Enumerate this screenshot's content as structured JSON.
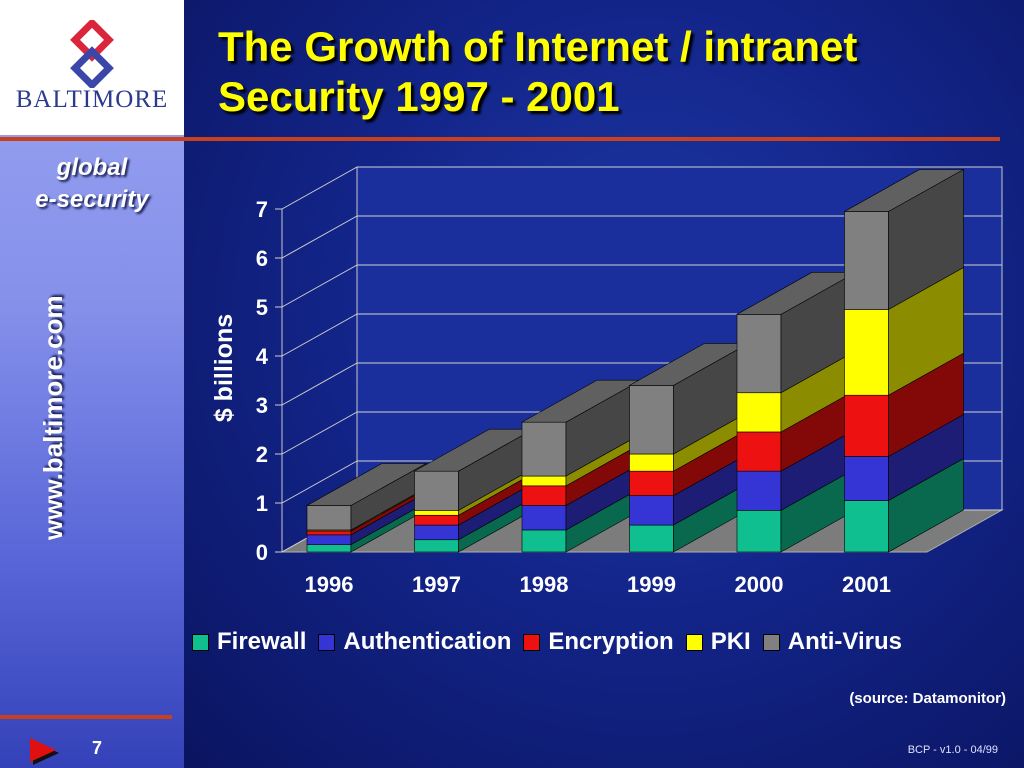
{
  "logo": {
    "name": "BALTIMORE",
    "icon": "baltimore-diamond-logo"
  },
  "sidebar": {
    "tagline_line1": "global",
    "tagline_line2": "e-security",
    "url": "www.baltimore.com"
  },
  "title": {
    "line1": "The Growth of Internet / intranet",
    "line2": "Security 1997 - 2001"
  },
  "footer": {
    "slide_number": "7",
    "version": "BCP - v1.0 - 04/99",
    "next_icon": "play-arrow-icon"
  },
  "source_note": "(source: Datamonitor)",
  "colors": {
    "accent_line": "#c8401c",
    "title": "#ffff00"
  },
  "chart_data": {
    "type": "bar",
    "stacked": true,
    "three_d": true,
    "title": "",
    "xlabel": "",
    "ylabel": "$ billions",
    "ylim": [
      0,
      7
    ],
    "yticks": [
      "0",
      "1",
      "2",
      "3",
      "4",
      "5",
      "6",
      "7"
    ],
    "grid": true,
    "legend": "bottom",
    "categories": [
      "1996",
      "1997",
      "1998",
      "1999",
      "2000",
      "2001"
    ],
    "series": [
      {
        "name": "Firewall",
        "color": "#0fbf8f",
        "values": [
          0.15,
          0.25,
          0.45,
          0.55,
          0.85,
          1.05
        ]
      },
      {
        "name": "Authentication",
        "color": "#3535d6",
        "values": [
          0.2,
          0.3,
          0.5,
          0.6,
          0.8,
          0.9
        ]
      },
      {
        "name": "Encryption",
        "color": "#ee1111",
        "values": [
          0.08,
          0.2,
          0.4,
          0.5,
          0.8,
          1.25
        ]
      },
      {
        "name": "PKI",
        "color": "#ffff00",
        "values": [
          0.02,
          0.1,
          0.2,
          0.35,
          0.8,
          1.75
        ]
      },
      {
        "name": "Anti-Virus",
        "color": "#808080",
        "values": [
          0.5,
          0.8,
          1.1,
          1.4,
          1.6,
          2.0
        ]
      }
    ]
  }
}
